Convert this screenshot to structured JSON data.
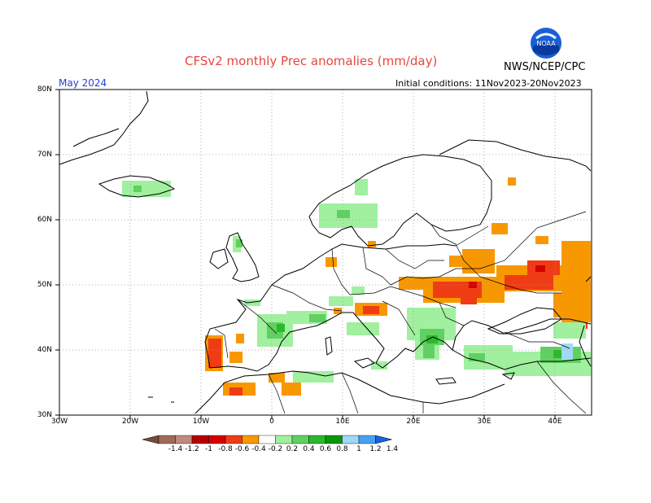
{
  "header": {
    "title": "CFSv2 monthly Prec anomalies (mm/day)",
    "month": "May 2024",
    "initial_conditions": "Initial conditions: 11Nov2023-20Nov2023",
    "agency": "NWS/NCEP/CPC",
    "logo_text": "NOAA"
  },
  "axes": {
    "lat_labels": [
      "80N",
      "70N",
      "60N",
      "50N",
      "40N",
      "30N"
    ],
    "lon_labels": [
      "30W",
      "20W",
      "10W",
      "0",
      "10E",
      "20E",
      "30E",
      "40E"
    ]
  },
  "colorbar": {
    "labels": [
      "-1.4",
      "-1.2",
      "-1",
      "-0.8",
      "-0.6",
      "-0.4",
      "-0.2",
      "0.2",
      "0.4",
      "0.6",
      "0.8",
      "1",
      "1.2",
      "1.4"
    ],
    "colors": [
      "#7a4a3a",
      "#a06a55",
      "#c08a80",
      "#b80000",
      "#d40000",
      "#f03c14",
      "#f89800",
      "#ffffff",
      "#a0f0a0",
      "#60d060",
      "#2cb82c",
      "#0a960a",
      "#a0d8f8",
      "#4aa0f0",
      "#1a60e0"
    ]
  },
  "legend": {
    "dry_strong": "#d40000",
    "dry_mod": "#f03c14",
    "dry_weak": "#f89800",
    "wet_weak": "#a0f0a0",
    "wet_mod": "#60d060",
    "wet_strong": "#2cb82c",
    "wet_vstrong": "#a0d8f8"
  }
}
